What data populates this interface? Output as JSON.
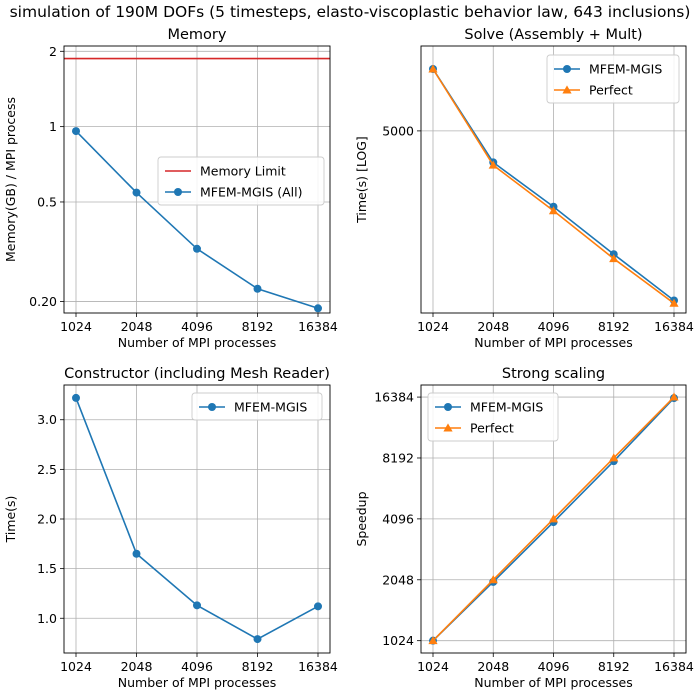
{
  "figure": {
    "suptitle": "simulation of 190M DOFs (5 timesteps, elasto-viscoplastic behavior law, 643 inclusions)"
  },
  "chart_data": [
    {
      "type": "line",
      "title": "Memory",
      "xlabel": "Number of MPI processes",
      "ylabel": "Memory(GB) / MPI process",
      "x_scale": "log2",
      "y_scale": "log",
      "xticks": [
        1024,
        2048,
        4096,
        8192,
        16384
      ],
      "xtick_labels": [
        "1024",
        "2048",
        "4096",
        "8192",
        "16384"
      ],
      "yticks": [
        0.2,
        0.5,
        1,
        2
      ],
      "ytick_labels": [
        "0.20",
        "0.5",
        "1",
        "2"
      ],
      "xlim": [
        1024,
        16384
      ],
      "ylim": [
        0.18,
        2.1
      ],
      "grid": true,
      "legend": "center-right",
      "series": [
        {
          "name": "Memory Limit",
          "kind": "hline",
          "y": 1.87,
          "color": "#d62728",
          "marker": "none"
        },
        {
          "name": "MFEM-MGIS (All)",
          "x": [
            1024,
            2048,
            4096,
            8192,
            16384
          ],
          "values": [
            0.96,
            0.545,
            0.325,
            0.225,
            0.188
          ],
          "color": "#1f77b4",
          "marker": "circle"
        }
      ]
    },
    {
      "type": "line",
      "title": "Solve (Assembly + Mult)",
      "xlabel": "Number of MPI processes",
      "ylabel": "Time(s) [LOG]",
      "x_scale": "log2",
      "y_scale": "log",
      "xticks": [
        1024,
        2048,
        4096,
        8192,
        16384
      ],
      "xtick_labels": [
        "1024",
        "2048",
        "4096",
        "8192",
        "16384"
      ],
      "yticks": [
        5000
      ],
      "ytick_labels": [
        "5000"
      ],
      "xlim": [
        1024,
        16384
      ],
      "ylim": [
        1980,
        7700
      ],
      "grid": true,
      "legend": "top-right",
      "series": [
        {
          "name": "MFEM-MGIS",
          "x": [
            1024,
            2048,
            4096,
            8192,
            16384
          ],
          "values": [
            6850,
            4260,
            3400,
            2670,
            2110
          ],
          "color": "#1f77b4",
          "marker": "circle"
        },
        {
          "name": "Perfect",
          "x": [
            1024,
            2048,
            4096,
            8192,
            16384
          ],
          "values": [
            6850,
            4200,
            3330,
            2610,
            2080
          ],
          "color": "#ff7f0e",
          "marker": "triangle"
        }
      ]
    },
    {
      "type": "line",
      "title": "Constructor (including Mesh Reader)",
      "xlabel": "Number of MPI processes",
      "ylabel": "Time(s)",
      "x_scale": "log2",
      "y_scale": "linear",
      "xticks": [
        1024,
        2048,
        4096,
        8192,
        16384
      ],
      "xtick_labels": [
        "1024",
        "2048",
        "4096",
        "8192",
        "16384"
      ],
      "yticks": [
        1.0,
        1.5,
        2.0,
        2.5,
        3.0
      ],
      "ytick_labels": [
        "1.0",
        "1.5",
        "2.0",
        "2.5",
        "3.0"
      ],
      "xlim": [
        1024,
        16384
      ],
      "ylim": [
        0.65,
        3.35
      ],
      "grid": true,
      "legend": "top-right",
      "series": [
        {
          "name": "MFEM-MGIS",
          "x": [
            1024,
            2048,
            4096,
            8192,
            16384
          ],
          "values": [
            3.22,
            1.65,
            1.13,
            0.79,
            1.12
          ],
          "color": "#1f77b4",
          "marker": "circle"
        }
      ]
    },
    {
      "type": "line",
      "title": "Strong scaling",
      "xlabel": "Number of MPI processes",
      "ylabel": "Speedup",
      "x_scale": "log2",
      "y_scale": "log2",
      "xticks": [
        1024,
        2048,
        4096,
        8192,
        16384
      ],
      "xtick_labels": [
        "1024",
        "2048",
        "4096",
        "8192",
        "16384"
      ],
      "yticks": [
        1024,
        2048,
        4096,
        8192,
        16384
      ],
      "ytick_labels": [
        "1024",
        "2048",
        "4096",
        "8192",
        "16384"
      ],
      "xlim": [
        1024,
        16384
      ],
      "ylim": [
        890,
        18800
      ],
      "grid": true,
      "legend": "top-left",
      "series": [
        {
          "name": "MFEM-MGIS",
          "x": [
            1024,
            2048,
            4096,
            8192,
            16384
          ],
          "values": [
            1024,
            2000,
            3950,
            7900,
            16200
          ],
          "color": "#1f77b4",
          "marker": "circle"
        },
        {
          "name": "Perfect",
          "x": [
            1024,
            2048,
            4096,
            8192,
            16384
          ],
          "values": [
            1024,
            2048,
            4096,
            8192,
            16384
          ],
          "color": "#ff7f0e",
          "marker": "triangle"
        }
      ]
    }
  ]
}
